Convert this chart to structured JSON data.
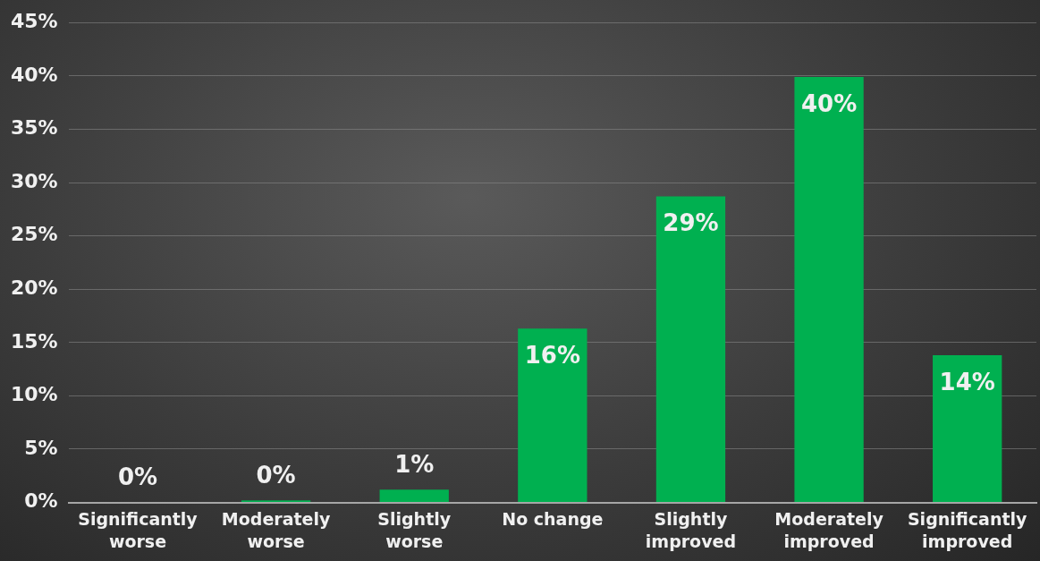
{
  "chart_data": {
    "type": "bar",
    "categories": [
      "Significantly worse",
      "Moderately worse",
      "Slightly worse",
      "No change",
      "Slightly improved",
      "Moderately improved",
      "Significantly improved"
    ],
    "values": [
      0,
      0.2,
      1.2,
      16.3,
      28.7,
      39.9,
      13.8
    ],
    "value_labels": [
      "0%",
      "0%",
      "1%",
      "16%",
      "29%",
      "40%",
      "14%"
    ],
    "color": "#00b050",
    "ylim": [
      0,
      45
    ],
    "yticks": [
      {
        "value": 0,
        "label": "0%"
      },
      {
        "value": 5,
        "label": "5%"
      },
      {
        "value": 10,
        "label": "10%"
      },
      {
        "value": 15,
        "label": "15%"
      },
      {
        "value": 20,
        "label": "20%"
      },
      {
        "value": 25,
        "label": "25%"
      },
      {
        "value": 30,
        "label": "30%"
      },
      {
        "value": 35,
        "label": "35%"
      },
      {
        "value": 40,
        "label": "40%"
      },
      {
        "value": 45,
        "label": "45%"
      }
    ],
    "grid": "y",
    "legend": false
  }
}
